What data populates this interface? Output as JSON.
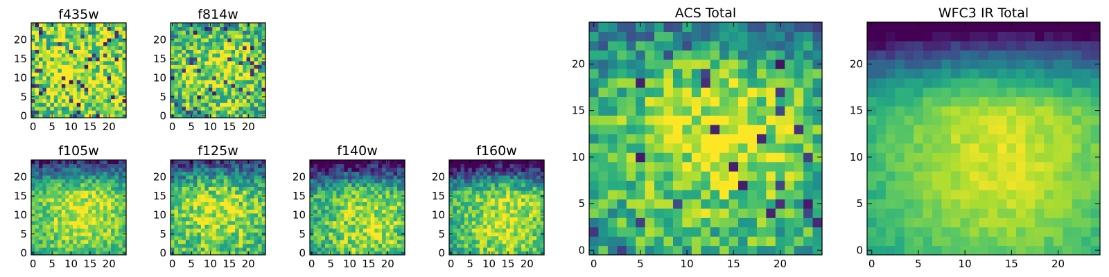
{
  "figure": {
    "description_free": true
  },
  "colormap": {
    "name": "viridis",
    "stops": [
      "#440154",
      "#472c7a",
      "#3b518b",
      "#2c718e",
      "#21908d",
      "#27ad81",
      "#5cc863",
      "#aadc32",
      "#fde725"
    ]
  },
  "chart_data": [
    {
      "type": "heatmap",
      "id": "f435w",
      "title": "f435w",
      "grid": [
        25,
        25
      ],
      "xlim": [
        0,
        24
      ],
      "ylim": [
        0,
        24
      ],
      "xticks": [
        0,
        5,
        10,
        15,
        20
      ],
      "yticks": [
        0,
        5,
        10,
        15,
        20
      ],
      "pattern": {
        "peak": [
          13,
          12
        ],
        "spread": 11,
        "base": 0.72,
        "amp": 0.18,
        "noise": 0.33,
        "topdrop": 0.0,
        "dark_fraction": 0.06,
        "seed": 11
      }
    },
    {
      "type": "heatmap",
      "id": "f814w",
      "title": "f814w",
      "grid": [
        25,
        25
      ],
      "xlim": [
        0,
        24
      ],
      "ylim": [
        0,
        24
      ],
      "xticks": [
        0,
        5,
        10,
        15,
        20
      ],
      "yticks": [
        0,
        5,
        10,
        15,
        20
      ],
      "pattern": {
        "peak": [
          13,
          12
        ],
        "spread": 9,
        "base": 0.62,
        "amp": 0.28,
        "noise": 0.3,
        "topdrop": 0.1,
        "dark_fraction": 0.05,
        "seed": 23
      }
    },
    {
      "type": "heatmap",
      "id": "f105w",
      "title": "f105w",
      "grid": [
        25,
        25
      ],
      "xlim": [
        0,
        24
      ],
      "ylim": [
        0,
        24
      ],
      "xticks": [
        0,
        5,
        10,
        15,
        20
      ],
      "yticks": [
        0,
        5,
        10,
        15,
        20
      ],
      "pattern": {
        "peak": [
          13,
          11
        ],
        "spread": 10,
        "base": 0.55,
        "amp": 0.38,
        "noise": 0.18,
        "topdrop": 0.55,
        "dark_fraction": 0.0,
        "seed": 37
      }
    },
    {
      "type": "heatmap",
      "id": "f125w",
      "title": "f125w",
      "grid": [
        25,
        25
      ],
      "xlim": [
        0,
        24
      ],
      "ylim": [
        0,
        24
      ],
      "xticks": [
        0,
        5,
        10,
        15,
        20
      ],
      "yticks": [
        0,
        5,
        10,
        15,
        20
      ],
      "pattern": {
        "peak": [
          12,
          11
        ],
        "spread": 10,
        "base": 0.55,
        "amp": 0.35,
        "noise": 0.22,
        "topdrop": 0.5,
        "dark_fraction": 0.0,
        "seed": 41
      }
    },
    {
      "type": "heatmap",
      "id": "f140w",
      "title": "f140w",
      "grid": [
        25,
        25
      ],
      "xlim": [
        0,
        24
      ],
      "ylim": [
        0,
        24
      ],
      "xticks": [
        0,
        5,
        10,
        15,
        20
      ],
      "yticks": [
        0,
        5,
        10,
        15,
        20
      ],
      "pattern": {
        "peak": [
          15,
          8
        ],
        "spread": 10,
        "base": 0.5,
        "amp": 0.4,
        "noise": 0.22,
        "topdrop": 0.65,
        "dark_fraction": 0.0,
        "seed": 53
      }
    },
    {
      "type": "heatmap",
      "id": "f160w",
      "title": "f160w",
      "grid": [
        25,
        25
      ],
      "xlim": [
        0,
        24
      ],
      "ylim": [
        0,
        24
      ],
      "xticks": [
        0,
        5,
        10,
        15,
        20
      ],
      "yticks": [
        0,
        5,
        10,
        15,
        20
      ],
      "pattern": {
        "peak": [
          14,
          9
        ],
        "spread": 10,
        "base": 0.5,
        "amp": 0.42,
        "noise": 0.2,
        "topdrop": 0.7,
        "dark_fraction": 0.0,
        "seed": 67
      }
    },
    {
      "type": "heatmap",
      "id": "acs_total",
      "title": "ACS Total",
      "grid": [
        25,
        25
      ],
      "xlim": [
        0,
        24
      ],
      "ylim": [
        0,
        24
      ],
      "xticks": [
        0,
        5,
        10,
        15,
        20
      ],
      "yticks": [
        0,
        5,
        10,
        15,
        20
      ],
      "pattern": {
        "peak": [
          13,
          13
        ],
        "spread": 8,
        "base": 0.58,
        "amp": 0.35,
        "noise": 0.22,
        "topdrop": 0.25,
        "dark_fraction": 0.04,
        "seed": 79
      }
    },
    {
      "type": "heatmap",
      "id": "wfc3_ir_total",
      "title": "WFC3 IR Total",
      "grid": [
        25,
        25
      ],
      "xlim": [
        0,
        24
      ],
      "ylim": [
        0,
        24
      ],
      "xticks": [
        0,
        5,
        10,
        15,
        20
      ],
      "yticks": [
        0,
        5,
        10,
        15,
        20
      ],
      "pattern": {
        "peak": [
          14,
          10
        ],
        "spread": 10,
        "base": 0.52,
        "amp": 0.42,
        "noise": 0.06,
        "topdrop": 0.75,
        "dark_fraction": 0.0,
        "seed": 97
      }
    }
  ]
}
